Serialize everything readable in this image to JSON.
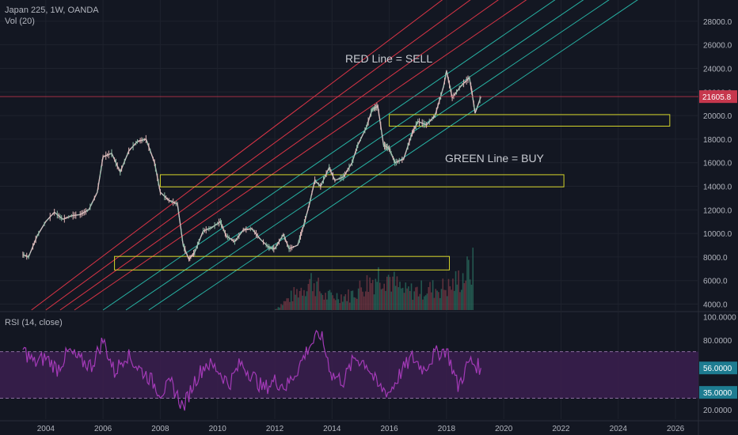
{
  "header": {
    "title": "Japan 225, 1W, OANDA",
    "volume_label": "Vol (20)",
    "rsi_label": "RSI (14, close)"
  },
  "annotations": {
    "red_line": "RED Line = SELL",
    "green_line": "GREEN Line = BUY"
  },
  "colors": {
    "background": "#131722",
    "up": "#8fbfa8",
    "down": "#e0b5b5",
    "sell_lines": "#d93446",
    "buy_lines": "#27b3a4",
    "zones": "#d4d42a",
    "rsi_line": "#a33ab7",
    "rsi_band": "#3b1f4f",
    "price_tag": "#c6374d",
    "rsi_tag": "#1e7c91"
  },
  "chart_data": [
    {
      "type": "line",
      "title": "Japan 225, 1W, OANDA",
      "x_ticks": [
        "2004",
        "2006",
        "2008",
        "2010",
        "2012",
        "2014",
        "2016",
        "2018",
        "2020",
        "2022",
        "2024",
        "2026"
      ],
      "y_ticks": [
        "4000.0",
        "6000.0",
        "8000.0",
        "10000.0",
        "12000.0",
        "14000.0",
        "16000.0",
        "18000.0",
        "20000.0",
        "22000.0",
        "24000.0",
        "26000.0",
        "28000.0"
      ],
      "xlim": [
        2002.4,
        2026.8
      ],
      "ylim": [
        3500,
        29400
      ],
      "last_price": "21605.8",
      "series": [
        {
          "values_desc": "weekly close",
          "x": [
            2003.2,
            2003.4,
            2003.7,
            2004.0,
            2004.3,
            2004.6,
            2004.9,
            2005.2,
            2005.5,
            2005.8,
            2006.0,
            2006.3,
            2006.6,
            2006.9,
            2007.2,
            2007.5,
            2007.8,
            2008.0,
            2008.3,
            2008.6,
            2008.8,
            2009.0,
            2009.2,
            2009.5,
            2009.8,
            2010.1,
            2010.3,
            2010.6,
            2010.9,
            2011.2,
            2011.5,
            2011.8,
            2012.0,
            2012.3,
            2012.5,
            2012.8,
            2013.0,
            2013.2,
            2013.4,
            2013.6,
            2013.9,
            2014.1,
            2014.4,
            2014.7,
            2014.9,
            2015.2,
            2015.4,
            2015.6,
            2015.8,
            2016.0,
            2016.2,
            2016.5,
            2016.8,
            2017.0,
            2017.3,
            2017.6,
            2017.9,
            2018.0,
            2018.2,
            2018.5,
            2018.8,
            2018.9,
            2019.0,
            2019.2
          ],
          "y": [
            8200,
            8000,
            9800,
            11000,
            11800,
            11200,
            11500,
            11600,
            12000,
            13500,
            16500,
            16800,
            15200,
            17000,
            17800,
            18000,
            16000,
            13500,
            12800,
            12500,
            9000,
            7800,
            8400,
            10200,
            10500,
            11000,
            9800,
            9300,
            10300,
            10400,
            9500,
            8800,
            8700,
            9900,
            8700,
            9000,
            10600,
            12400,
            14500,
            14000,
            15600,
            14500,
            14800,
            16000,
            17500,
            19000,
            20500,
            20800,
            17500,
            17200,
            16000,
            16300,
            18500,
            19500,
            19200,
            20000,
            22500,
            23800,
            21500,
            22500,
            23200,
            21800,
            20200,
            21605.8
          ]
        }
      ],
      "volume": {
        "x": [
          2012.0,
          2013.3,
          2013.7,
          2014.6,
          2015.8,
          2016.2,
          2016.5,
          2018.1,
          2018.9
        ],
        "y": [
          0.02,
          0.66,
          0.3,
          0.32,
          0.85,
          0.55,
          0.4,
          0.5,
          0.92
        ]
      },
      "trend_lines": [
        {
          "kind": "sell",
          "x": [
            2003.5,
            2018.5
          ],
          "y": [
            3500,
            31000
          ]
        },
        {
          "kind": "sell",
          "x": [
            2004.0,
            2019.5
          ],
          "y": [
            3500,
            31000
          ]
        },
        {
          "kind": "sell",
          "x": [
            2004.5,
            2020.5
          ],
          "y": [
            3500,
            31000
          ]
        },
        {
          "kind": "sell",
          "x": [
            2005.0,
            2021.5
          ],
          "y": [
            3500,
            31000
          ]
        },
        {
          "kind": "buy",
          "x": [
            2006.0,
            2022.5
          ],
          "y": [
            3500,
            31000
          ]
        },
        {
          "kind": "buy",
          "x": [
            2006.8,
            2023.5
          ],
          "y": [
            3500,
            31000
          ]
        },
        {
          "kind": "buy",
          "x": [
            2007.6,
            2024.4
          ],
          "y": [
            3500,
            31000
          ]
        },
        {
          "kind": "buy",
          "x": [
            2008.6,
            2025.4
          ],
          "y": [
            3500,
            31000
          ]
        }
      ],
      "zones": [
        {
          "x": [
            2008.0,
            2022.1
          ],
          "y": [
            13950,
            14980
          ]
        },
        {
          "x": [
            2016.0,
            2025.8
          ],
          "y": [
            19100,
            20080
          ]
        },
        {
          "x": [
            2006.4,
            2018.1
          ],
          "y": [
            6900,
            8050
          ]
        }
      ]
    },
    {
      "type": "line",
      "title": "RSI (14, close)",
      "x_ticks": [
        "2004",
        "2006",
        "2008",
        "2010",
        "2012",
        "2014",
        "2016",
        "2018",
        "2020",
        "2022",
        "2024",
        "2026"
      ],
      "y_ticks": [
        "20.0000",
        "35.0000",
        "56.0000",
        "80.0000",
        "100.0000"
      ],
      "ylim": [
        12,
        103
      ],
      "levels": [
        70,
        30
      ],
      "current_value": "56.0000",
      "mid_value": "35.0000",
      "series": [
        {
          "values_desc": "RSI",
          "x": [
            2003.2,
            2003.6,
            2004.0,
            2004.4,
            2004.8,
            2005.2,
            2005.6,
            2006.0,
            2006.4,
            2006.8,
            2007.2,
            2007.6,
            2008.0,
            2008.4,
            2008.8,
            2009.2,
            2009.6,
            2010.0,
            2010.4,
            2010.8,
            2011.2,
            2011.6,
            2012.0,
            2012.4,
            2012.8,
            2013.2,
            2013.6,
            2014.0,
            2014.4,
            2014.8,
            2015.2,
            2015.6,
            2016.0,
            2016.4,
            2016.8,
            2017.2,
            2017.6,
            2018.0,
            2018.4,
            2018.8,
            2019.2
          ],
          "y": [
            72,
            60,
            65,
            55,
            70,
            62,
            58,
            80,
            52,
            68,
            57,
            48,
            35,
            42,
            22,
            45,
            60,
            55,
            42,
            60,
            50,
            38,
            45,
            40,
            55,
            75,
            85,
            50,
            45,
            65,
            60,
            40,
            35,
            52,
            65,
            55,
            68,
            72,
            40,
            62,
            56
          ]
        }
      ]
    }
  ]
}
